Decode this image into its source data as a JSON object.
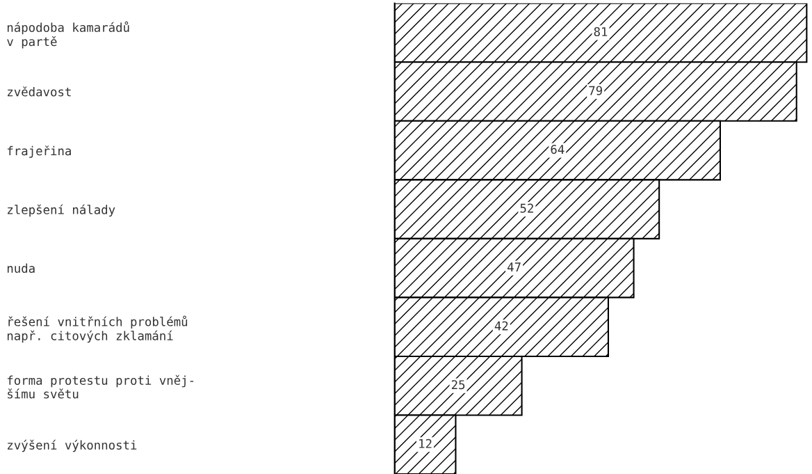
{
  "chart_data": {
    "type": "bar",
    "orientation": "horizontal",
    "categories": [
      "nápodoba kamarádů\nv partě",
      "zvědavost",
      "frajeřina",
      "zlepšení nálady",
      "nuda",
      "řešení vnitřních problémů\nnapř. citových zklamání",
      "forma protestu proti vněj-\nšímu světu",
      "zvýšení výkonnosti"
    ],
    "values": [
      81,
      79,
      64,
      52,
      47,
      42,
      25,
      12
    ],
    "color": "#000000",
    "data_labels": true
  }
}
